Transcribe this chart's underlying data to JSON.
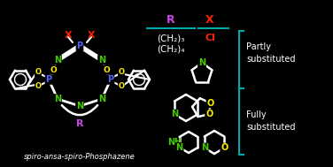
{
  "bg_color": "#000000",
  "fig_width": 3.76,
  "fig_height": 1.89,
  "dpi": 100,
  "left_structure_label": "spiro-ansa-spiro-Phosphazene",
  "table_header_R": "R",
  "table_header_X": "X",
  "table_row1_R": "(CH₂)₃",
  "table_row2_R": "(CH₂)₄",
  "table_col_X": "Cl",
  "partly_label": "Partly\nsubstituted",
  "fully_label": "Fully\nsubstituted",
  "colors": {
    "bg": "#000000",
    "white": "#ffffff",
    "red": "#ff2200",
    "green": "#44cc00",
    "yellow": "#ffee00",
    "blue": "#5566ff",
    "purple": "#cc44ee",
    "teal": "#00aaaa"
  }
}
